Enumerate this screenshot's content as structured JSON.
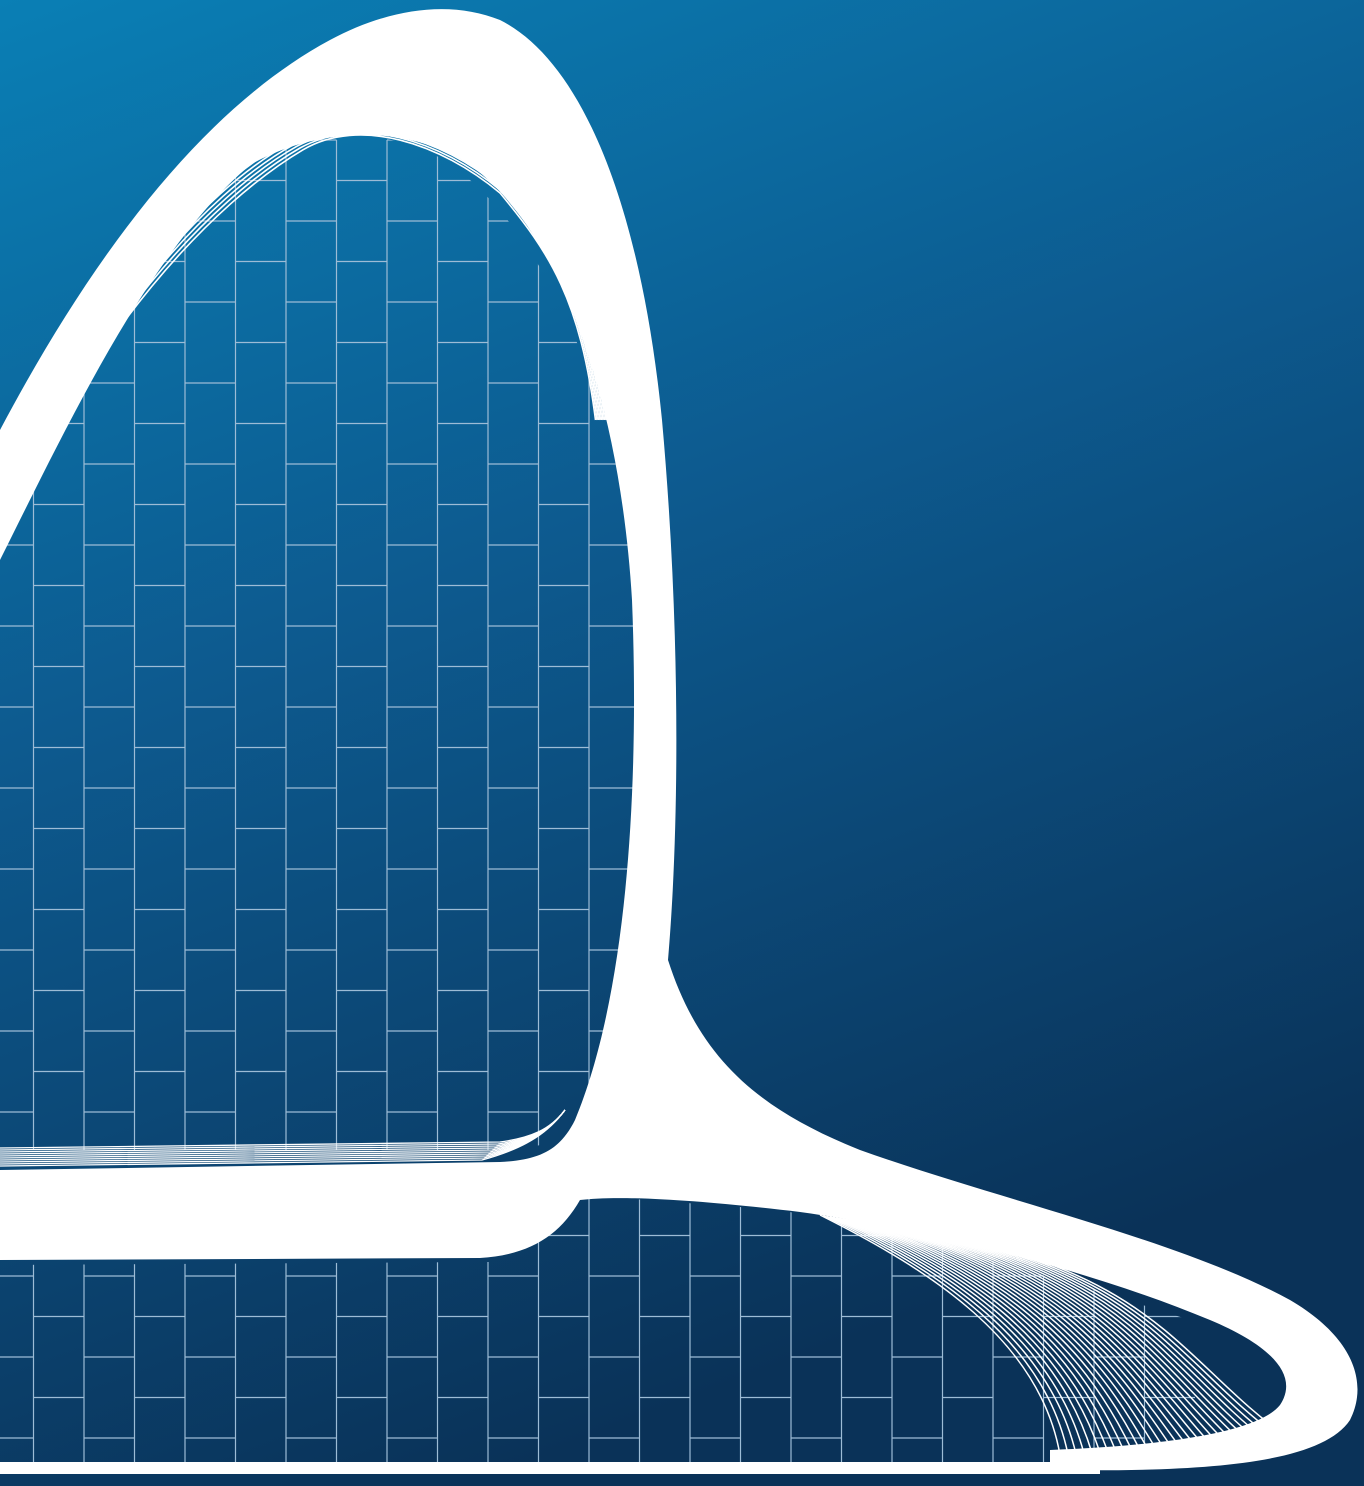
{
  "image": {
    "subject": "architectural-illustration",
    "elements": [
      "flowing-white-ribbon-facade",
      "blue-gradient-sky",
      "grid-panel-wall"
    ]
  },
  "colors": {
    "sky_top": "#0a7fb5",
    "sky_mid": "#0d5a8f",
    "sky_bottom": "#0a3258",
    "grid_line": "#9dbcd6",
    "ribbon": "#ffffff"
  }
}
